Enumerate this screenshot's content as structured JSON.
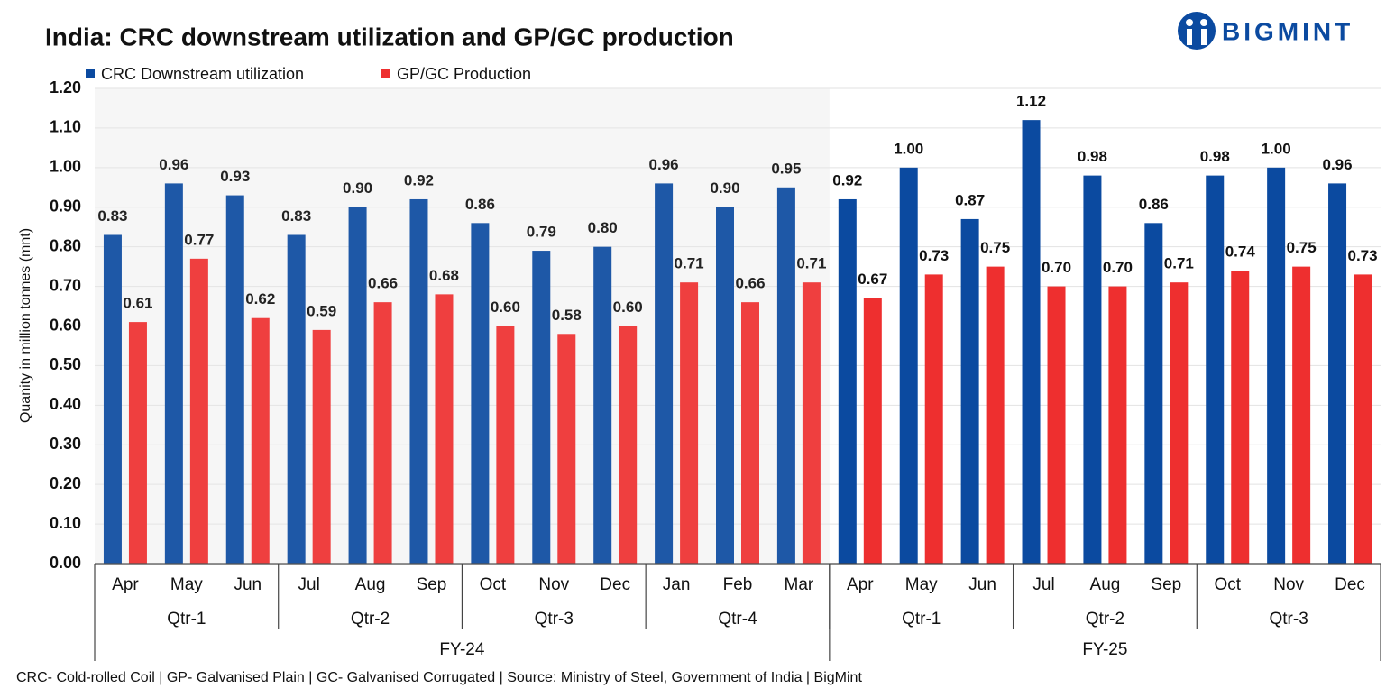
{
  "logo": "BIGMINT",
  "chart_data": {
    "type": "bar",
    "title": "India: CRC downstream utilization and GP/GC production",
    "y_label": "Quanity in million tonnes (mnt)",
    "footnote": "CRC- Cold-rolled Coil | GP- Galvanised Plain | GC- Galvanised Corrugated | Source: Ministry of Steel, Government of India | BigMint",
    "categories": [
      "Apr",
      "May",
      "Jun",
      "Jul",
      "Aug",
      "Sep",
      "Oct",
      "Nov",
      "Dec",
      "Jan",
      "Feb",
      "Mar",
      "Apr",
      "May",
      "Jun",
      "Jul",
      "Aug",
      "Sep",
      "Oct",
      "Nov",
      "Dec"
    ],
    "quarters": [
      {
        "label": "Qtr-1",
        "count": 3
      },
      {
        "label": "Qtr-2",
        "count": 3
      },
      {
        "label": "Qtr-3",
        "count": 3
      },
      {
        "label": "Qtr-4",
        "count": 3
      },
      {
        "label": "Qtr-1",
        "count": 3
      },
      {
        "label": "Qtr-2",
        "count": 3
      },
      {
        "label": "Qtr-3",
        "count": 3
      }
    ],
    "fiscal_years": [
      {
        "label": "FY-24",
        "count": 12
      },
      {
        "label": "FY-25",
        "count": 9
      }
    ],
    "series": [
      {
        "name": "CRC Downstream utilization",
        "color": "#0b4aa0",
        "values": [
          0.83,
          0.96,
          0.93,
          0.83,
          0.9,
          0.92,
          0.86,
          0.79,
          0.8,
          0.96,
          0.9,
          0.95,
          0.92,
          1.0,
          0.87,
          1.12,
          0.98,
          0.86,
          0.98,
          1.0,
          0.96
        ],
        "value_labels": [
          "0.83",
          "0.96",
          "0.93",
          "0.83",
          "0.90",
          "0.92",
          "0.86",
          "0.79",
          "0.80",
          "0.96",
          "0.90",
          "0.95",
          "0.92",
          "1.00",
          "0.87",
          "1.12",
          "0.98",
          "0.86",
          "0.98",
          "1.00",
          "0.96"
        ]
      },
      {
        "name": "GP/GC Production",
        "color": "#ee2f2f",
        "values": [
          0.61,
          0.77,
          0.62,
          0.59,
          0.66,
          0.68,
          0.6,
          0.58,
          0.6,
          0.71,
          0.66,
          0.71,
          0.67,
          0.73,
          0.75,
          0.7,
          0.7,
          0.71,
          0.74,
          0.75,
          0.73
        ],
        "value_labels": [
          "0.61",
          "0.77",
          "0.62",
          "0.59",
          "0.66",
          "0.68",
          "0.60",
          "0.58",
          "0.60",
          "0.71",
          "0.66",
          "0.71",
          "0.67",
          "0.73",
          "0.75",
          "0.70",
          "0.70",
          "0.71",
          "0.74",
          "0.75",
          "0.73"
        ]
      }
    ],
    "ylim": [
      0,
      1.2
    ],
    "yticks": [
      {
        "value": 0,
        "label": "0.00"
      },
      {
        "value": 0.1,
        "label": "0.10"
      },
      {
        "value": 0.2,
        "label": "0.20"
      },
      {
        "value": 0.3,
        "label": "0.30"
      },
      {
        "value": 0.4,
        "label": "0.40"
      },
      {
        "value": 0.5,
        "label": "0.50"
      },
      {
        "value": 0.6,
        "label": "0.60"
      },
      {
        "value": 0.7,
        "label": "0.70"
      },
      {
        "value": 0.8,
        "label": "0.80"
      },
      {
        "value": 0.9,
        "label": "0.90"
      },
      {
        "value": 1.0,
        "label": "1.00"
      },
      {
        "value": 1.1,
        "label": "1.10"
      },
      {
        "value": 1.2,
        "label": "1.20"
      }
    ],
    "grid": true
  }
}
